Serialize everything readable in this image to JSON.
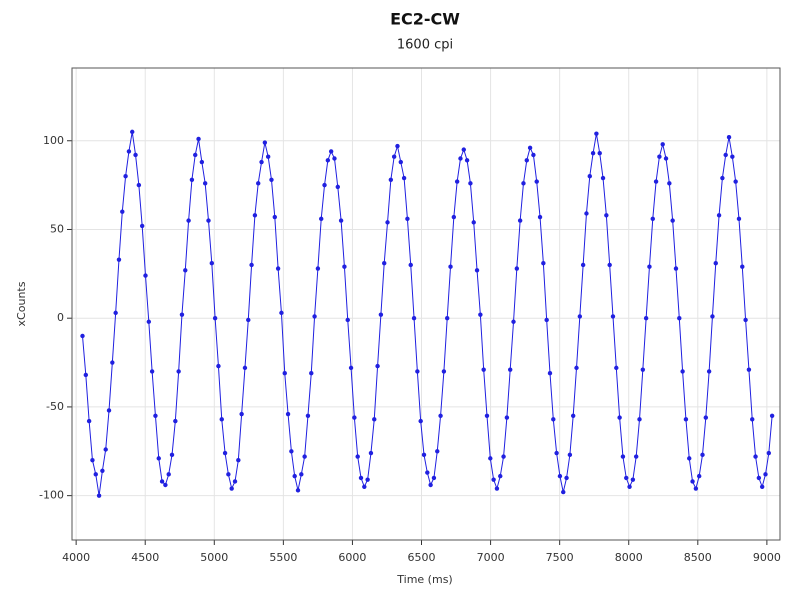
{
  "chart_data": {
    "type": "line",
    "title": "EC2-CW",
    "subtitle": "1600 cpi",
    "x_label": "Time (ms)",
    "y_label": "xCounts",
    "xlim": [
      3970,
      9095
    ],
    "ylim": [
      -125,
      141
    ],
    "xticks": [
      4000,
      4500,
      5000,
      5500,
      6000,
      6500,
      7000,
      7500,
      8000,
      8500,
      9000
    ],
    "yticks": [
      -100,
      -50,
      0,
      50,
      100
    ],
    "grid": true,
    "markers": true,
    "x": [
      4046,
      4070,
      4094,
      4118,
      4142,
      4166,
      4190,
      4214,
      4238,
      4262,
      4286,
      4310,
      4334,
      4358,
      4382,
      4406,
      4430,
      4454,
      4478,
      4502,
      4526,
      4550,
      4574,
      4598,
      4622,
      4646,
      4670,
      4694,
      4718,
      4742,
      4766,
      4790,
      4814,
      4838,
      4862,
      4886,
      4910,
      4934,
      4958,
      4982,
      5006,
      5030,
      5054,
      5078,
      5102,
      5126,
      5150,
      5174,
      5198,
      5222,
      5246,
      5270,
      5294,
      5318,
      5342,
      5366,
      5390,
      5414,
      5438,
      5462,
      5486,
      5510,
      5534,
      5558,
      5582,
      5606,
      5630,
      5654,
      5678,
      5702,
      5726,
      5750,
      5774,
      5798,
      5822,
      5846,
      5870,
      5894,
      5918,
      5942,
      5966,
      5990,
      6014,
      6038,
      6062,
      6086,
      6110,
      6134,
      6158,
      6182,
      6206,
      6230,
      6254,
      6278,
      6302,
      6326,
      6350,
      6374,
      6398,
      6422,
      6446,
      6470,
      6494,
      6518,
      6542,
      6566,
      6590,
      6614,
      6638,
      6662,
      6686,
      6710,
      6734,
      6758,
      6782,
      6806,
      6830,
      6854,
      6878,
      6902,
      6926,
      6950,
      6974,
      6998,
      7022,
      7046,
      7070,
      7094,
      7118,
      7142,
      7166,
      7190,
      7214,
      7238,
      7262,
      7286,
      7310,
      7334,
      7358,
      7382,
      7406,
      7430,
      7454,
      7478,
      7502,
      7526,
      7550,
      7574,
      7598,
      7622,
      7646,
      7670,
      7694,
      7718,
      7742,
      7766,
      7790,
      7814,
      7838,
      7862,
      7886,
      7910,
      7934,
      7958,
      7982,
      8006,
      8030,
      8054,
      8078,
      8102,
      8126,
      8150,
      8174,
      8198,
      8222,
      8246,
      8270,
      8294,
      8318,
      8342,
      8366,
      8390,
      8414,
      8438,
      8462,
      8486,
      8510,
      8534,
      8558,
      8582,
      8606,
      8630,
      8654,
      8678,
      8702,
      8726,
      8750,
      8774,
      8798,
      8822,
      8846,
      8870,
      8894,
      8918,
      8942,
      8966,
      8990,
      9014,
      9038
    ],
    "series": [
      {
        "name": "xCounts",
        "color": "#2020e0",
        "values": [
          -10,
          -32,
          -58,
          -80,
          -88,
          -100,
          -86,
          -74,
          -52,
          -25,
          3,
          33,
          60,
          80,
          94,
          105,
          92,
          75,
          52,
          24,
          -2,
          -30,
          -55,
          -79,
          -92,
          -94,
          -88,
          -77,
          -58,
          -30,
          2,
          27,
          55,
          78,
          92,
          101,
          88,
          76,
          55,
          31,
          0,
          -27,
          -57,
          -76,
          -88,
          -96,
          -92,
          -80,
          -54,
          -28,
          -1,
          30,
          58,
          76,
          88,
          99,
          91,
          78,
          57,
          28,
          3,
          -31,
          -54,
          -75,
          -89,
          -97,
          -88,
          -78,
          -55,
          -31,
          1,
          28,
          56,
          75,
          89,
          94,
          90,
          74,
          55,
          29,
          -1,
          -28,
          -56,
          -78,
          -90,
          -95,
          -91,
          -76,
          -57,
          -27,
          2,
          31,
          54,
          78,
          91,
          97,
          88,
          79,
          56,
          30,
          0,
          -30,
          -58,
          -77,
          -87,
          -94,
          -90,
          -75,
          -55,
          -30,
          0,
          29,
          57,
          77,
          90,
          95,
          89,
          76,
          54,
          27,
          2,
          -29,
          -55,
          -79,
          -91,
          -96,
          -89,
          -78,
          -56,
          -29,
          -2,
          28,
          55,
          76,
          89,
          96,
          92,
          77,
          57,
          31,
          -1,
          -31,
          -57,
          -76,
          -89,
          -98,
          -90,
          -77,
          -55,
          -28,
          1,
          30,
          59,
          80,
          93,
          104,
          93,
          79,
          58,
          30,
          1,
          -28,
          -56,
          -78,
          -90,
          -95,
          -91,
          -78,
          -57,
          -29,
          0,
          29,
          56,
          77,
          91,
          98,
          90,
          76,
          55,
          28,
          0,
          -30,
          -57,
          -79,
          -92,
          -96,
          -89,
          -77,
          -56,
          -30,
          1,
          31,
          58,
          79,
          92,
          102,
          91,
          77,
          56,
          29,
          -1,
          -29,
          -57,
          -78,
          -90,
          -95,
          -88,
          -76,
          -55
        ]
      }
    ]
  }
}
